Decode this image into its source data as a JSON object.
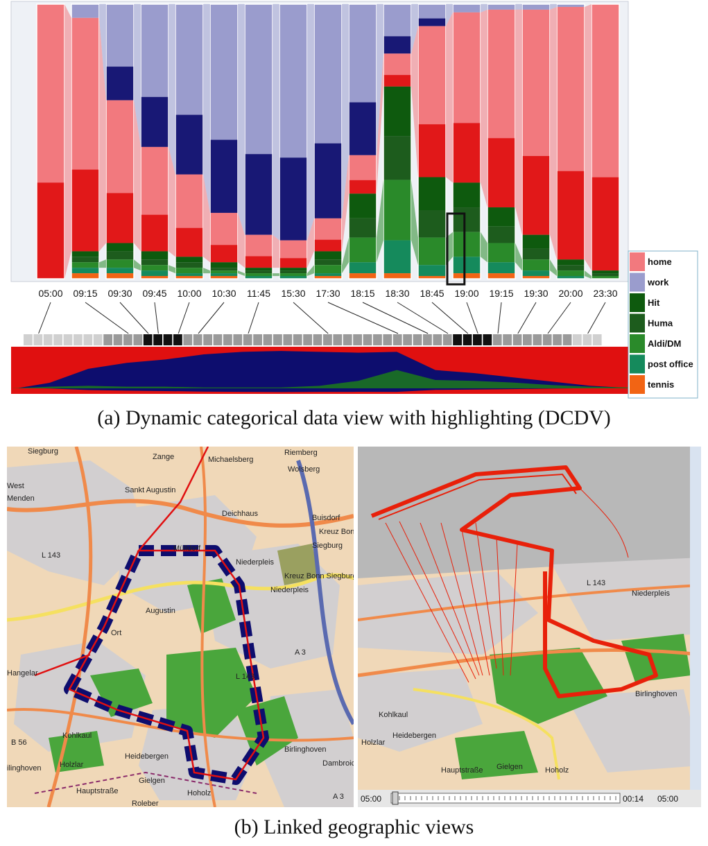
{
  "chart_data": {
    "type": "area",
    "x": [
      "05:00",
      "09:15",
      "09:30",
      "09:45",
      "10:00",
      "10:30",
      "11:45",
      "15:30",
      "17:30",
      "18:15",
      "18:30",
      "18:45",
      "19:00",
      "19:15",
      "19:30",
      "20:00",
      "23:30"
    ],
    "series": [
      {
        "name": "home",
        "values": [
          100,
          85,
          52,
          38,
          30,
          18,
          12,
          10,
          12,
          14,
          12,
          55,
          62,
          72,
          82,
          92,
          97
        ]
      },
      {
        "name": "work",
        "values": [
          0,
          5,
          35,
          52,
          62,
          76,
          84,
          86,
          78,
          55,
          18,
          8,
          3,
          2,
          2,
          1,
          0
        ]
      },
      {
        "name": "Hit",
        "values": [
          0,
          2,
          3,
          3,
          2,
          2,
          1,
          1,
          3,
          9,
          18,
          12,
          9,
          7,
          5,
          2,
          1
        ]
      },
      {
        "name": "Huma",
        "values": [
          0,
          2,
          3,
          2,
          2,
          1,
          1,
          1,
          2,
          7,
          16,
          10,
          9,
          6,
          4,
          2,
          1
        ]
      },
      {
        "name": "Aldi/DM",
        "values": [
          0,
          2,
          3,
          2,
          2,
          1,
          1,
          1,
          3,
          9,
          22,
          10,
          9,
          7,
          4,
          2,
          1
        ]
      },
      {
        "name": "post office",
        "values": [
          0,
          2,
          2,
          2,
          1,
          1,
          1,
          1,
          1,
          4,
          12,
          4,
          6,
          4,
          2,
          1,
          0
        ]
      },
      {
        "name": "tennis",
        "values": [
          0,
          2,
          2,
          1,
          1,
          1,
          0,
          0,
          1,
          2,
          2,
          1,
          2,
          2,
          1,
          0,
          0
        ]
      }
    ],
    "legend": {
      "placement": "right",
      "entries": [
        "home",
        "work",
        "Hit",
        "Huma",
        "Aldi/DM",
        "post office",
        "tennis"
      ]
    },
    "highlight_time": "19:00",
    "colors": {
      "home": "#f2797e",
      "home_dark": "#e01010",
      "work": "#9a9ccd",
      "work_dark": "#0d0d6e",
      "Hit": "#0e5a0e",
      "Huma": "#1d5c1d",
      "Aldi/DM": "#2a8a2a",
      "post office": "#158a5c",
      "tennis": "#f26414"
    },
    "grid": false
  },
  "captions": {
    "a": "(a)  Dynamic categorical data view with highlighting (DCDV)",
    "b": "(b)  Linked geographic views"
  },
  "map_left": {
    "labels": [
      "Siegburg",
      "Zange",
      "Michaelsberg",
      "Riemberg",
      "Wolsberg",
      "Menden",
      "West",
      "Deichhaus",
      "Sankt Augustin",
      "Buisdorf",
      "Mülldorf",
      "Kreuz Bonn",
      "Siegburg",
      "L 143",
      "Niederpleis",
      "Augustin",
      "Kreuz Bonn Siegburg",
      "Niederpleis",
      "Ort",
      "Hangelar",
      "A 3",
      "L 143",
      "B 56",
      "Kohlkaul",
      "ilinghoven",
      "Holzlar",
      "Heidebergen",
      "Birlinghoven",
      "Dambroich",
      "Hauptstraße",
      "Gielgen",
      "Roleber",
      "Hoholz",
      "A 3"
    ]
  },
  "map_right": {
    "labels": [
      "L 143",
      "Kohlkaul",
      "Holzlar",
      "Heidebergen",
      "Birlinghoven",
      "Gielgen",
      "Hoholz",
      "Hauptstraße",
      "Niederpleis"
    ],
    "player": {
      "start": "05:00",
      "elapsed": "00:14",
      "current": "05:00"
    }
  }
}
